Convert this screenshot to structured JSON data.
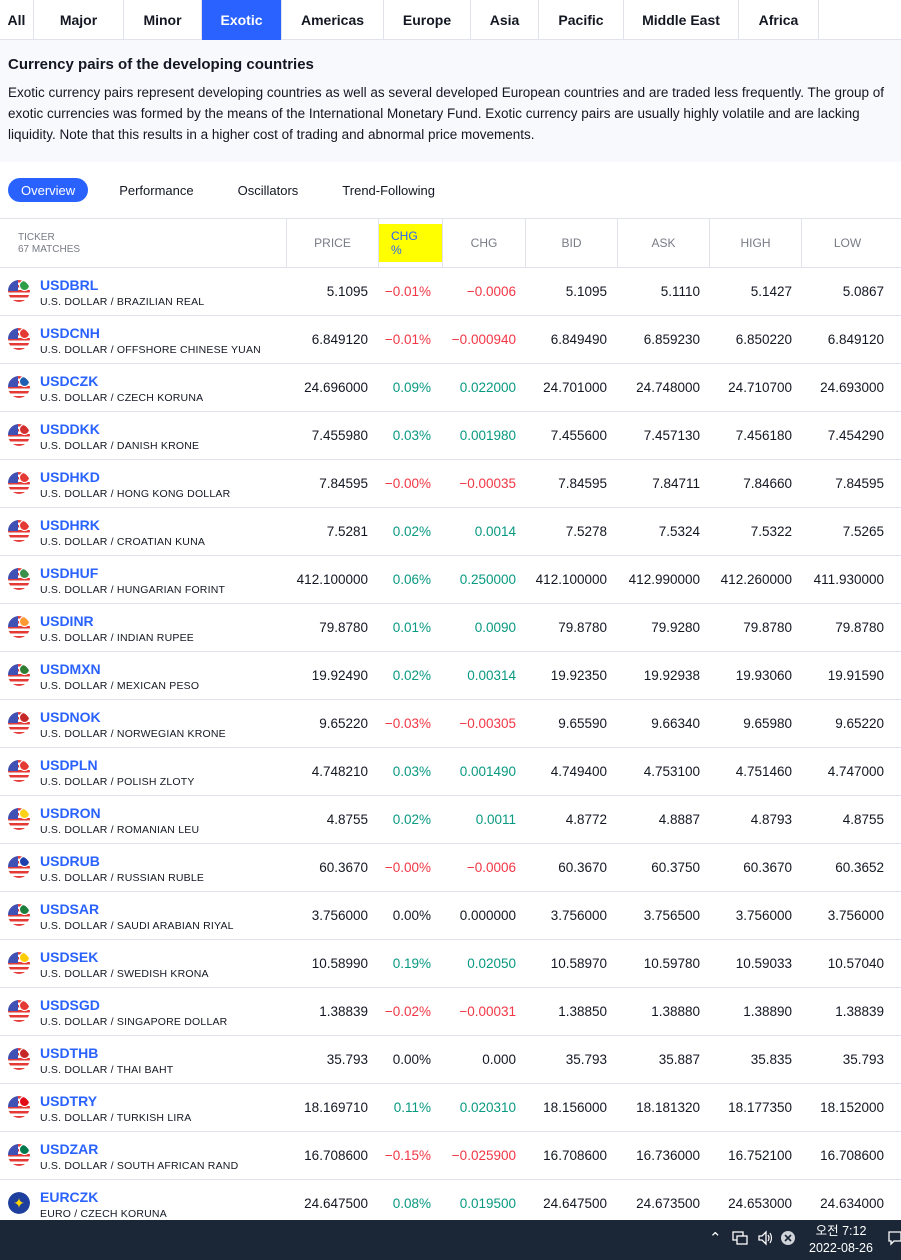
{
  "tabs": [
    {
      "label": "All"
    },
    {
      "label": "Major"
    },
    {
      "label": "Minor"
    },
    {
      "label": "Exotic"
    },
    {
      "label": "Americas"
    },
    {
      "label": "Europe"
    },
    {
      "label": "Asia"
    },
    {
      "label": "Pacific"
    },
    {
      "label": "Middle East"
    },
    {
      "label": "Africa"
    }
  ],
  "active_tab": "Exotic",
  "intro": {
    "title": "Currency pairs of the developing countries",
    "text": "Exotic currency pairs represent developing countries as well as several developed European countries and are traded less frequently. The group of exotic currencies was formed by the means of the International Monetary Fund. Exotic currency pairs are usually highly volatile and are lacking liquidity. Note that this results in a higher cost of trading and abnormal price movements."
  },
  "subtabs": [
    {
      "label": "Overview"
    },
    {
      "label": "Performance"
    },
    {
      "label": "Oscillators"
    },
    {
      "label": "Trend-Following"
    }
  ],
  "active_subtab": "Overview",
  "table": {
    "ticker_header": "TICKER",
    "matches": "67 MATCHES",
    "columns": [
      "PRICE",
      "CHG %",
      "CHG",
      "BID",
      "ASK",
      "HIGH",
      "LOW"
    ],
    "highlighted_column": "CHG %",
    "rows": [
      {
        "symbol": "USDBRL",
        "desc": "U.S. DOLLAR / BRAZILIAN REAL",
        "flag": "#2e9e48",
        "price": "5.1095",
        "chg_pct": "−0.01%",
        "chg": "−0.0006",
        "bid": "5.1095",
        "ask": "5.1110",
        "high": "5.1427",
        "low": "5.0867",
        "dir": "neg"
      },
      {
        "symbol": "USDCNH",
        "desc": "U.S. DOLLAR / OFFSHORE CHINESE YUAN",
        "flag": "#e53935",
        "price": "6.849120",
        "chg_pct": "−0.01%",
        "chg": "−0.000940",
        "bid": "6.849490",
        "ask": "6.859230",
        "high": "6.850220",
        "low": "6.849120",
        "dir": "neg"
      },
      {
        "symbol": "USDCZK",
        "desc": "U.S. DOLLAR / CZECH KORUNA",
        "flag": "#1e5fb3",
        "price": "24.696000",
        "chg_pct": "0.09%",
        "chg": "0.022000",
        "bid": "24.701000",
        "ask": "24.748000",
        "high": "24.710700",
        "low": "24.693000",
        "dir": "pos"
      },
      {
        "symbol": "USDDKK",
        "desc": "U.S. DOLLAR / DANISH KRONE",
        "flag": "#d32f2f",
        "price": "7.455980",
        "chg_pct": "0.03%",
        "chg": "0.001980",
        "bid": "7.455600",
        "ask": "7.457130",
        "high": "7.456180",
        "low": "7.454290",
        "dir": "pos"
      },
      {
        "symbol": "USDHKD",
        "desc": "U.S. DOLLAR / HONG KONG DOLLAR",
        "flag": "#e53935",
        "price": "7.84595",
        "chg_pct": "−0.00%",
        "chg": "−0.00035",
        "bid": "7.84595",
        "ask": "7.84711",
        "high": "7.84660",
        "low": "7.84595",
        "dir": "neg"
      },
      {
        "symbol": "USDHRK",
        "desc": "U.S. DOLLAR / CROATIAN KUNA",
        "flag": "#e53935",
        "price": "7.5281",
        "chg_pct": "0.02%",
        "chg": "0.0014",
        "bid": "7.5278",
        "ask": "7.5324",
        "high": "7.5322",
        "low": "7.5265",
        "dir": "pos"
      },
      {
        "symbol": "USDHUF",
        "desc": "U.S. DOLLAR / HUNGARIAN FORINT",
        "flag": "#3a8f4a",
        "price": "412.100000",
        "chg_pct": "0.06%",
        "chg": "0.250000",
        "bid": "412.100000",
        "ask": "412.990000",
        "high": "412.260000",
        "low": "411.930000",
        "dir": "pos"
      },
      {
        "symbol": "USDINR",
        "desc": "U.S. DOLLAR / INDIAN RUPEE",
        "flag": "#ff9933",
        "price": "79.8780",
        "chg_pct": "0.01%",
        "chg": "0.0090",
        "bid": "79.8780",
        "ask": "79.9280",
        "high": "79.8780",
        "low": "79.8780",
        "dir": "pos"
      },
      {
        "symbol": "USDMXN",
        "desc": "U.S. DOLLAR / MEXICAN PESO",
        "flag": "#2e7d32",
        "price": "19.92490",
        "chg_pct": "0.02%",
        "chg": "0.00314",
        "bid": "19.92350",
        "ask": "19.92938",
        "high": "19.93060",
        "low": "19.91590",
        "dir": "pos"
      },
      {
        "symbol": "USDNOK",
        "desc": "U.S. DOLLAR / NORWEGIAN KRONE",
        "flag": "#c62828",
        "price": "9.65220",
        "chg_pct": "−0.03%",
        "chg": "−0.00305",
        "bid": "9.65590",
        "ask": "9.66340",
        "high": "9.65980",
        "low": "9.65220",
        "dir": "neg"
      },
      {
        "symbol": "USDPLN",
        "desc": "U.S. DOLLAR / POLISH ZLOTY",
        "flag": "#e53935",
        "price": "4.748210",
        "chg_pct": "0.03%",
        "chg": "0.001490",
        "bid": "4.749400",
        "ask": "4.753100",
        "high": "4.751460",
        "low": "4.747000",
        "dir": "pos"
      },
      {
        "symbol": "USDRON",
        "desc": "U.S. DOLLAR / ROMANIAN LEU",
        "flag": "#fcd116",
        "price": "4.8755",
        "chg_pct": "0.02%",
        "chg": "0.0011",
        "bid": "4.8772",
        "ask": "4.8887",
        "high": "4.8793",
        "low": "4.8755",
        "dir": "pos"
      },
      {
        "symbol": "USDRUB",
        "desc": "U.S. DOLLAR / RUSSIAN RUBLE",
        "flag": "#1e40af",
        "price": "60.3670",
        "chg_pct": "−0.00%",
        "chg": "−0.0006",
        "bid": "60.3670",
        "ask": "60.3750",
        "high": "60.3670",
        "low": "60.3652",
        "dir": "neg"
      },
      {
        "symbol": "USDSAR",
        "desc": "U.S. DOLLAR / SAUDI ARABIAN RIYAL",
        "flag": "#1b7f3b",
        "price": "3.756000",
        "chg_pct": "0.00%",
        "chg": "0.000000",
        "bid": "3.756000",
        "ask": "3.756500",
        "high": "3.756000",
        "low": "3.756000",
        "dir": "flat"
      },
      {
        "symbol": "USDSEK",
        "desc": "U.S. DOLLAR / SWEDISH KRONA",
        "flag": "#fecc02",
        "price": "10.58990",
        "chg_pct": "0.19%",
        "chg": "0.02050",
        "bid": "10.58970",
        "ask": "10.59780",
        "high": "10.59033",
        "low": "10.57040",
        "dir": "pos"
      },
      {
        "symbol": "USDSGD",
        "desc": "U.S. DOLLAR / SINGAPORE DOLLAR",
        "flag": "#e53935",
        "price": "1.38839",
        "chg_pct": "−0.02%",
        "chg": "−0.00031",
        "bid": "1.38850",
        "ask": "1.38880",
        "high": "1.38890",
        "low": "1.38839",
        "dir": "neg"
      },
      {
        "symbol": "USDTHB",
        "desc": "U.S. DOLLAR / THAI BAHT",
        "flag": "#c62828",
        "price": "35.793",
        "chg_pct": "0.00%",
        "chg": "0.000",
        "bid": "35.793",
        "ask": "35.887",
        "high": "35.835",
        "low": "35.793",
        "dir": "flat"
      },
      {
        "symbol": "USDTRY",
        "desc": "U.S. DOLLAR / TURKISH LIRA",
        "flag": "#e30a17",
        "price": "18.169710",
        "chg_pct": "0.11%",
        "chg": "0.020310",
        "bid": "18.156000",
        "ask": "18.181320",
        "high": "18.177350",
        "low": "18.152000",
        "dir": "pos"
      },
      {
        "symbol": "USDZAR",
        "desc": "U.S. DOLLAR / SOUTH AFRICAN RAND",
        "flag": "#007a4d",
        "price": "16.708600",
        "chg_pct": "−0.15%",
        "chg": "−0.025900",
        "bid": "16.708600",
        "ask": "16.736000",
        "high": "16.752100",
        "low": "16.708600",
        "dir": "neg"
      },
      {
        "symbol": "EURCZK",
        "desc": "EURO / CZECH KORUNA",
        "flag": "eu",
        "price": "24.647500",
        "chg_pct": "0.08%",
        "chg": "0.019500",
        "bid": "24.647500",
        "ask": "24.673500",
        "high": "24.653000",
        "low": "24.634000",
        "dir": "pos"
      }
    ]
  },
  "taskbar": {
    "time": "오전 7:12",
    "date": "2022-08-26",
    "icons": [
      "chevron-up-icon",
      "network-icon",
      "volume-icon",
      "notification-off-icon",
      "action-center-icon"
    ]
  },
  "colors": {
    "accent": "#2962ff",
    "positive": "#089981",
    "negative": "#f23645",
    "highlight": "#ffff00",
    "taskbar": "#1b2636"
  }
}
